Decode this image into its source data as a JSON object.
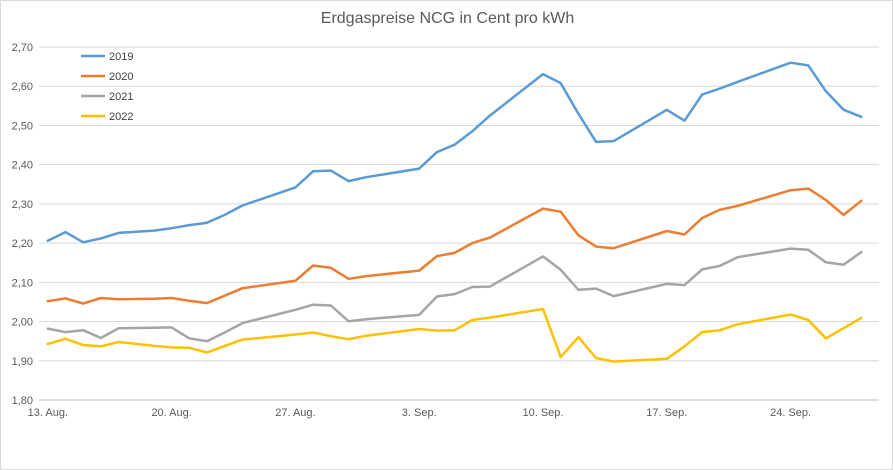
{
  "chart_data": {
    "type": "line",
    "title": "Erdgaspreise NCG in Cent pro kWh",
    "xlabel": "",
    "ylabel": "",
    "ylim": [
      1.8,
      2.7
    ],
    "y_ticks": [
      "1,80",
      "1,90",
      "2,00",
      "2,10",
      "2,20",
      "2,30",
      "2,40",
      "2,50",
      "2,60",
      "2,70"
    ],
    "x_tick_labels": [
      {
        "day": 0,
        "label": "13. Aug."
      },
      {
        "day": 7,
        "label": "20. Aug."
      },
      {
        "day": 14,
        "label": "27. Aug."
      },
      {
        "day": 21,
        "label": "3. Sep."
      },
      {
        "day": 28,
        "label": "10. Sep."
      },
      {
        "day": 35,
        "label": "17. Sep."
      },
      {
        "day": 42,
        "label": "24. Sep."
      }
    ],
    "x_days": [
      0,
      1,
      2,
      3,
      4,
      6,
      7,
      8,
      9,
      10,
      11,
      14,
      15,
      16,
      17,
      18,
      21,
      22,
      23,
      24,
      25,
      28,
      29,
      30,
      31,
      32,
      35,
      36,
      37,
      38,
      39,
      42,
      43,
      44,
      45,
      46
    ],
    "grid": "horizontal",
    "legend_position": "top-left",
    "series": [
      {
        "name": "2019",
        "color": "#5b9bd5",
        "values": [
          2.206,
          2.228,
          2.202,
          2.212,
          2.226,
          2.232,
          2.238,
          2.246,
          2.252,
          2.272,
          2.296,
          2.342,
          2.383,
          2.385,
          2.358,
          2.368,
          2.39,
          2.432,
          2.451,
          2.485,
          2.525,
          2.631,
          2.608,
          2.53,
          2.458,
          2.46,
          2.54,
          2.512,
          2.579,
          2.594,
          2.611,
          2.66,
          2.653,
          2.587,
          2.54,
          2.522
        ]
      },
      {
        "name": "2020",
        "color": "#ed7d31",
        "values": [
          2.052,
          2.059,
          2.046,
          2.06,
          2.057,
          2.058,
          2.06,
          2.053,
          2.047,
          2.066,
          2.085,
          2.104,
          2.143,
          2.137,
          2.109,
          2.116,
          2.13,
          2.167,
          2.175,
          2.2,
          2.214,
          2.288,
          2.28,
          2.22,
          2.191,
          2.187,
          2.231,
          2.222,
          2.264,
          2.285,
          2.295,
          2.335,
          2.339,
          2.31,
          2.272,
          2.308
        ]
      },
      {
        "name": "2021",
        "color": "#a5a5a5",
        "values": [
          1.982,
          1.973,
          1.978,
          1.958,
          1.983,
          1.984,
          1.985,
          1.957,
          1.95,
          1.972,
          1.996,
          2.03,
          2.043,
          2.041,
          2.001,
          2.006,
          2.017,
          2.064,
          2.07,
          2.088,
          2.089,
          2.166,
          2.132,
          2.081,
          2.084,
          2.065,
          2.096,
          2.093,
          2.133,
          2.142,
          2.164,
          2.186,
          2.183,
          2.151,
          2.145,
          2.177
        ]
      },
      {
        "name": "2022",
        "color": "#ffc000",
        "values": [
          1.943,
          1.956,
          1.94,
          1.937,
          1.948,
          1.938,
          1.934,
          1.933,
          1.921,
          1.938,
          1.954,
          1.967,
          1.972,
          1.963,
          1.955,
          1.964,
          1.981,
          1.977,
          1.978,
          2.004,
          2.01,
          2.032,
          1.91,
          1.96,
          1.907,
          1.898,
          1.905,
          1.937,
          1.973,
          1.978,
          1.993,
          2.018,
          2.004,
          1.957,
          1.983,
          2.009
        ]
      }
    ]
  }
}
